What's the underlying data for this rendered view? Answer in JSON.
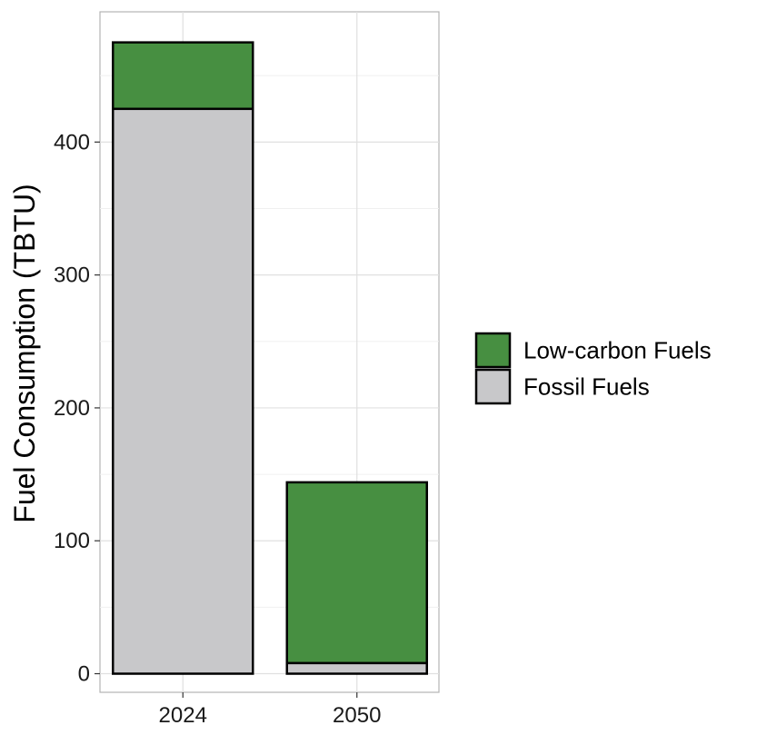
{
  "chart_data": {
    "type": "bar",
    "stacked": true,
    "categories": [
      "2024",
      "2050"
    ],
    "series": [
      {
        "name": "Fossil Fuels",
        "values": [
          425,
          8
        ],
        "color": "#c8c8ca"
      },
      {
        "name": "Low-carbon Fuels",
        "values": [
          50,
          136
        ],
        "color": "#478f41"
      }
    ],
    "ylabel": "Fuel Consumption (TBTU)",
    "xlabel": "",
    "ylim": [
      -14,
      498
    ],
    "yticks": [
      0,
      100,
      200,
      300,
      400
    ],
    "grid": true,
    "legend_position": "right",
    "legend_order": [
      "Low-carbon Fuels",
      "Fossil Fuels"
    ]
  }
}
